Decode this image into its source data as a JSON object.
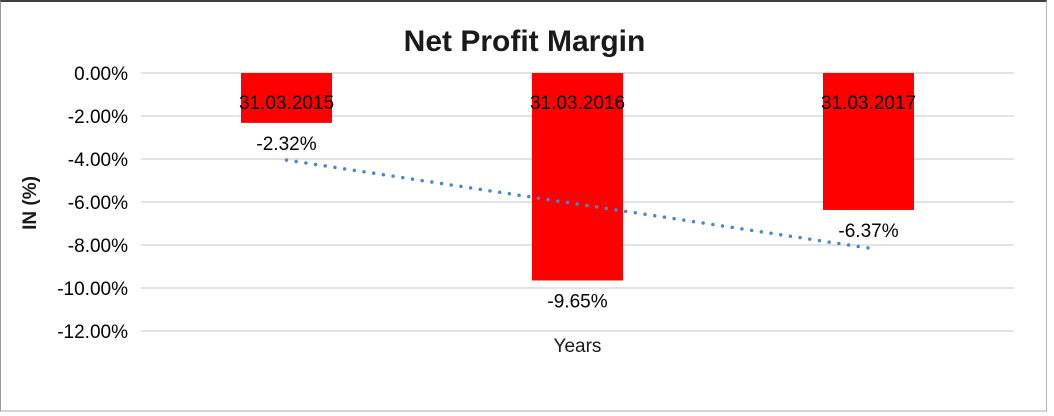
{
  "chart_data": {
    "type": "bar",
    "title": "Net Profit Margin",
    "xlabel": "Years",
    "ylabel": "IN (%)",
    "categories": [
      "31.03.2015",
      "31.03.2016",
      "31.03.2017"
    ],
    "values": [
      -2.32,
      -9.65,
      -6.37
    ],
    "data_labels": [
      "-2.32%",
      "-9.65%",
      "-6.37%"
    ],
    "y_ticks": [
      "0.00%",
      "-2.00%",
      "-4.00%",
      "-6.00%",
      "-8.00%",
      "-10.00%",
      "-12.00%"
    ],
    "y_tick_values": [
      0,
      -2,
      -4,
      -6,
      -8,
      -10,
      -12
    ],
    "ylim": [
      -12,
      0
    ],
    "grid": true,
    "legend": "none",
    "category_labels_position": "inside-top-of-bars",
    "colors": {
      "bar": "#FF0000",
      "gridline": "#D9D9D9",
      "text": "#000000",
      "trendline": "#4A86C8"
    },
    "trendline": {
      "type": "linear",
      "style": "dotted",
      "start_value": -4.05,
      "end_value": -8.14
    }
  }
}
